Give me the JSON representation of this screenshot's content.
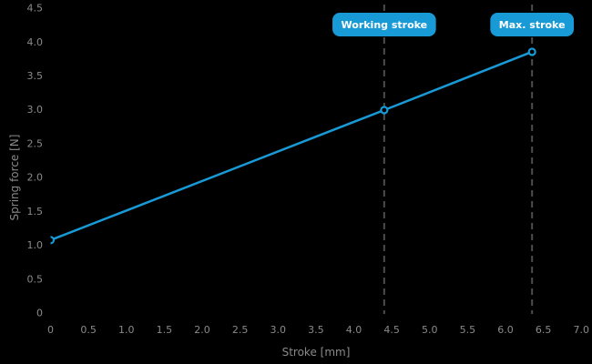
{
  "figure": {
    "background": "#000000"
  },
  "colors": {
    "accent": "#189ad6",
    "tick_text": "#8a8a8a",
    "axis_title_text": "#8a8a8a",
    "dashed_line": "#4d4d4d",
    "badge_fill": "#189ad6",
    "badge_text": "#ffffff",
    "marker_fill": "#000000"
  },
  "chart_data": {
    "type": "line",
    "title": "",
    "xlabel": "Stroke [mm]",
    "ylabel": "Spring force [N]",
    "xlim": [
      0,
      7.0
    ],
    "ylim": [
      0,
      4.5
    ],
    "grid": false,
    "legend": false,
    "x_ticks": [
      {
        "v": 0,
        "label": "0"
      },
      {
        "v": 0.5,
        "label": "0.5"
      },
      {
        "v": 1.0,
        "label": "1.0"
      },
      {
        "v": 1.5,
        "label": "1.5"
      },
      {
        "v": 2.0,
        "label": "2.0"
      },
      {
        "v": 2.5,
        "label": "2.5"
      },
      {
        "v": 3.0,
        "label": "3.0"
      },
      {
        "v": 3.5,
        "label": "3.5"
      },
      {
        "v": 4.0,
        "label": "4.0"
      },
      {
        "v": 4.5,
        "label": "4.5"
      },
      {
        "v": 5.0,
        "label": "5.0"
      },
      {
        "v": 5.5,
        "label": "5.5"
      },
      {
        "v": 6.0,
        "label": "6.0"
      },
      {
        "v": 6.5,
        "label": "6.5"
      },
      {
        "v": 7.0,
        "label": "7.0"
      }
    ],
    "y_ticks": [
      {
        "v": 0,
        "label": "0"
      },
      {
        "v": 0.5,
        "label": "0.5"
      },
      {
        "v": 1.0,
        "label": "1.0"
      },
      {
        "v": 1.5,
        "label": "1.5"
      },
      {
        "v": 2.0,
        "label": "2.0"
      },
      {
        "v": 2.5,
        "label": "2.5"
      },
      {
        "v": 3.0,
        "label": "3.0"
      },
      {
        "v": 3.5,
        "label": "3.5"
      },
      {
        "v": 4.0,
        "label": "4.0"
      },
      {
        "v": 4.5,
        "label": "4.5"
      }
    ],
    "series": [
      {
        "name": "spring-force-line",
        "color": "#189ad6",
        "points": [
          {
            "x": 0,
            "y": 1.07
          },
          {
            "x": 4.4,
            "y": 2.99
          },
          {
            "x": 6.35,
            "y": 3.85
          }
        ]
      }
    ],
    "annotations": [
      {
        "id": "working-stroke",
        "label": "Working stroke",
        "x": 4.4
      },
      {
        "id": "max-stroke",
        "label": "Max. stroke",
        "x": 6.35
      }
    ]
  }
}
